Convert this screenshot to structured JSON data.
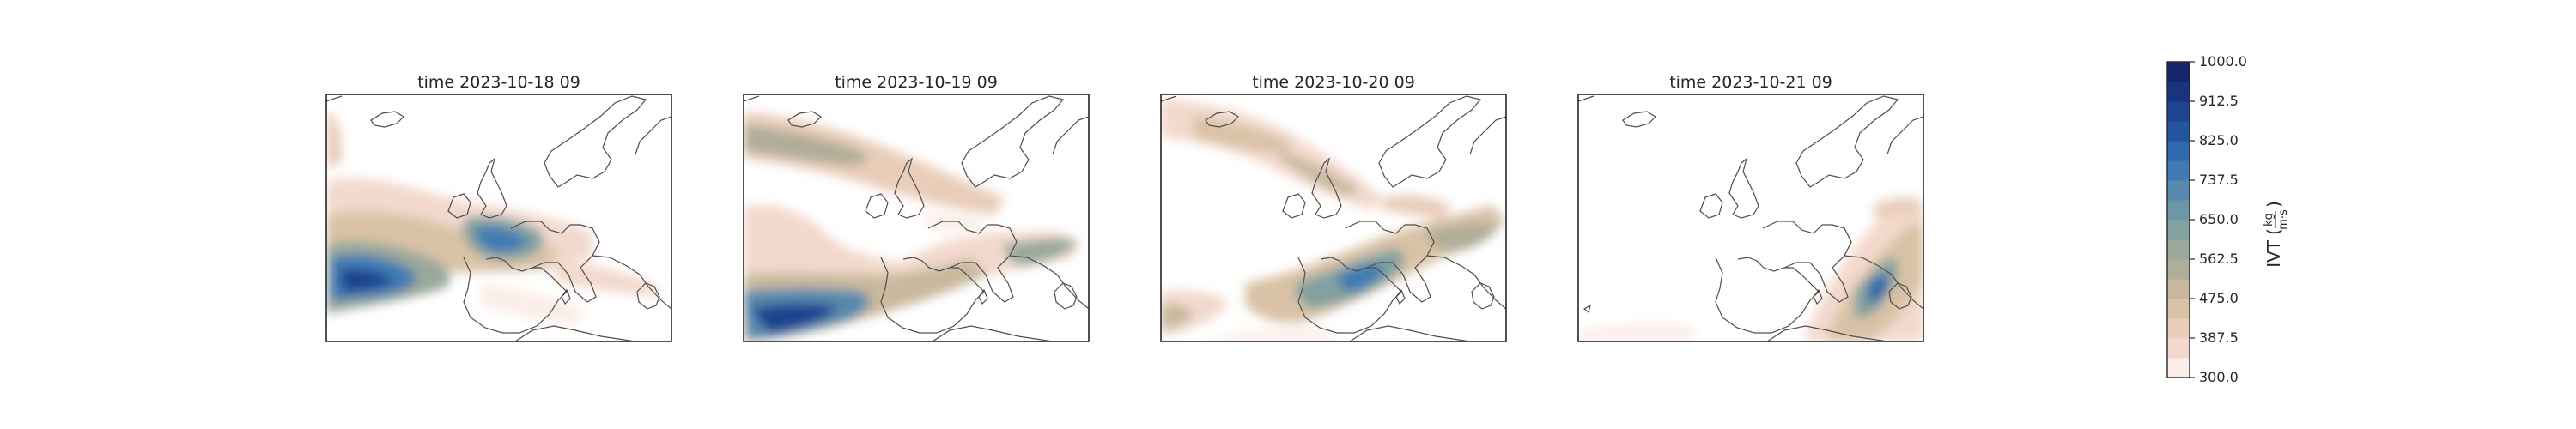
{
  "panels": [
    {
      "title": "time 2023-10-18 09"
    },
    {
      "title": "time 2023-10-19 09"
    },
    {
      "title": "time 2023-10-20 09"
    },
    {
      "title": "time 2023-10-21 09"
    }
  ],
  "colorbar": {
    "label": "IVT",
    "unit_num": "kg",
    "unit_den": "m·s",
    "ticks": [
      "1000.0",
      "912.5",
      "825.0",
      "737.5",
      "650.0",
      "562.5",
      "475.0",
      "387.5",
      "300.0"
    ],
    "levels": [
      "#fbeee8",
      "#f3d9cd",
      "#e9cdb9",
      "#d9c2a6",
      "#c8b89d",
      "#b0ad98",
      "#9aa89b",
      "#82a1a0",
      "#6c97a6",
      "#5689ad",
      "#417ab3",
      "#2e68ad",
      "#23549f",
      "#1e438f",
      "#1a337e",
      "#17266b"
    ]
  },
  "colors": {
    "coast": "#4d4d4d",
    "frame": "#262626"
  }
}
